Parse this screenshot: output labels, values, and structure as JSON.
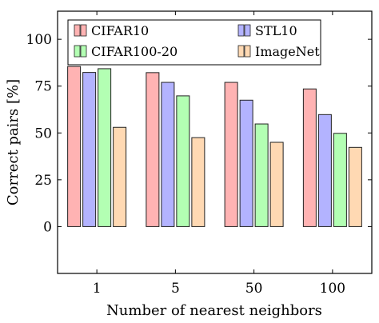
{
  "chart_data": {
    "type": "bar",
    "title": "",
    "xlabel": "Number of nearest neighbors",
    "ylabel": "Correct pairs [%]",
    "categories": [
      "1",
      "5",
      "50",
      "100"
    ],
    "ylim": [
      -25,
      115
    ],
    "yticks": [
      "0",
      "25",
      "50",
      "75",
      "100"
    ],
    "grid": false,
    "legend_placement": "top",
    "series": [
      {
        "name": "CIFAR10",
        "values": [
          85.5,
          82.2,
          77.0,
          73.5
        ],
        "fill": "#ffb3b3",
        "stroke": "#222222"
      },
      {
        "name": "STL10",
        "values": [
          82.3,
          77.0,
          67.5,
          59.8
        ],
        "fill": "#b3b3ff",
        "stroke": "#222222"
      },
      {
        "name": "CIFAR100-20",
        "values": [
          84.3,
          69.8,
          54.8,
          49.8
        ],
        "fill": "#b3ffb3",
        "stroke": "#222222"
      },
      {
        "name": "ImageNet",
        "values": [
          53.0,
          47.5,
          45.0,
          42.3
        ],
        "fill": "#ffd9b3",
        "stroke": "#222222"
      }
    ]
  }
}
